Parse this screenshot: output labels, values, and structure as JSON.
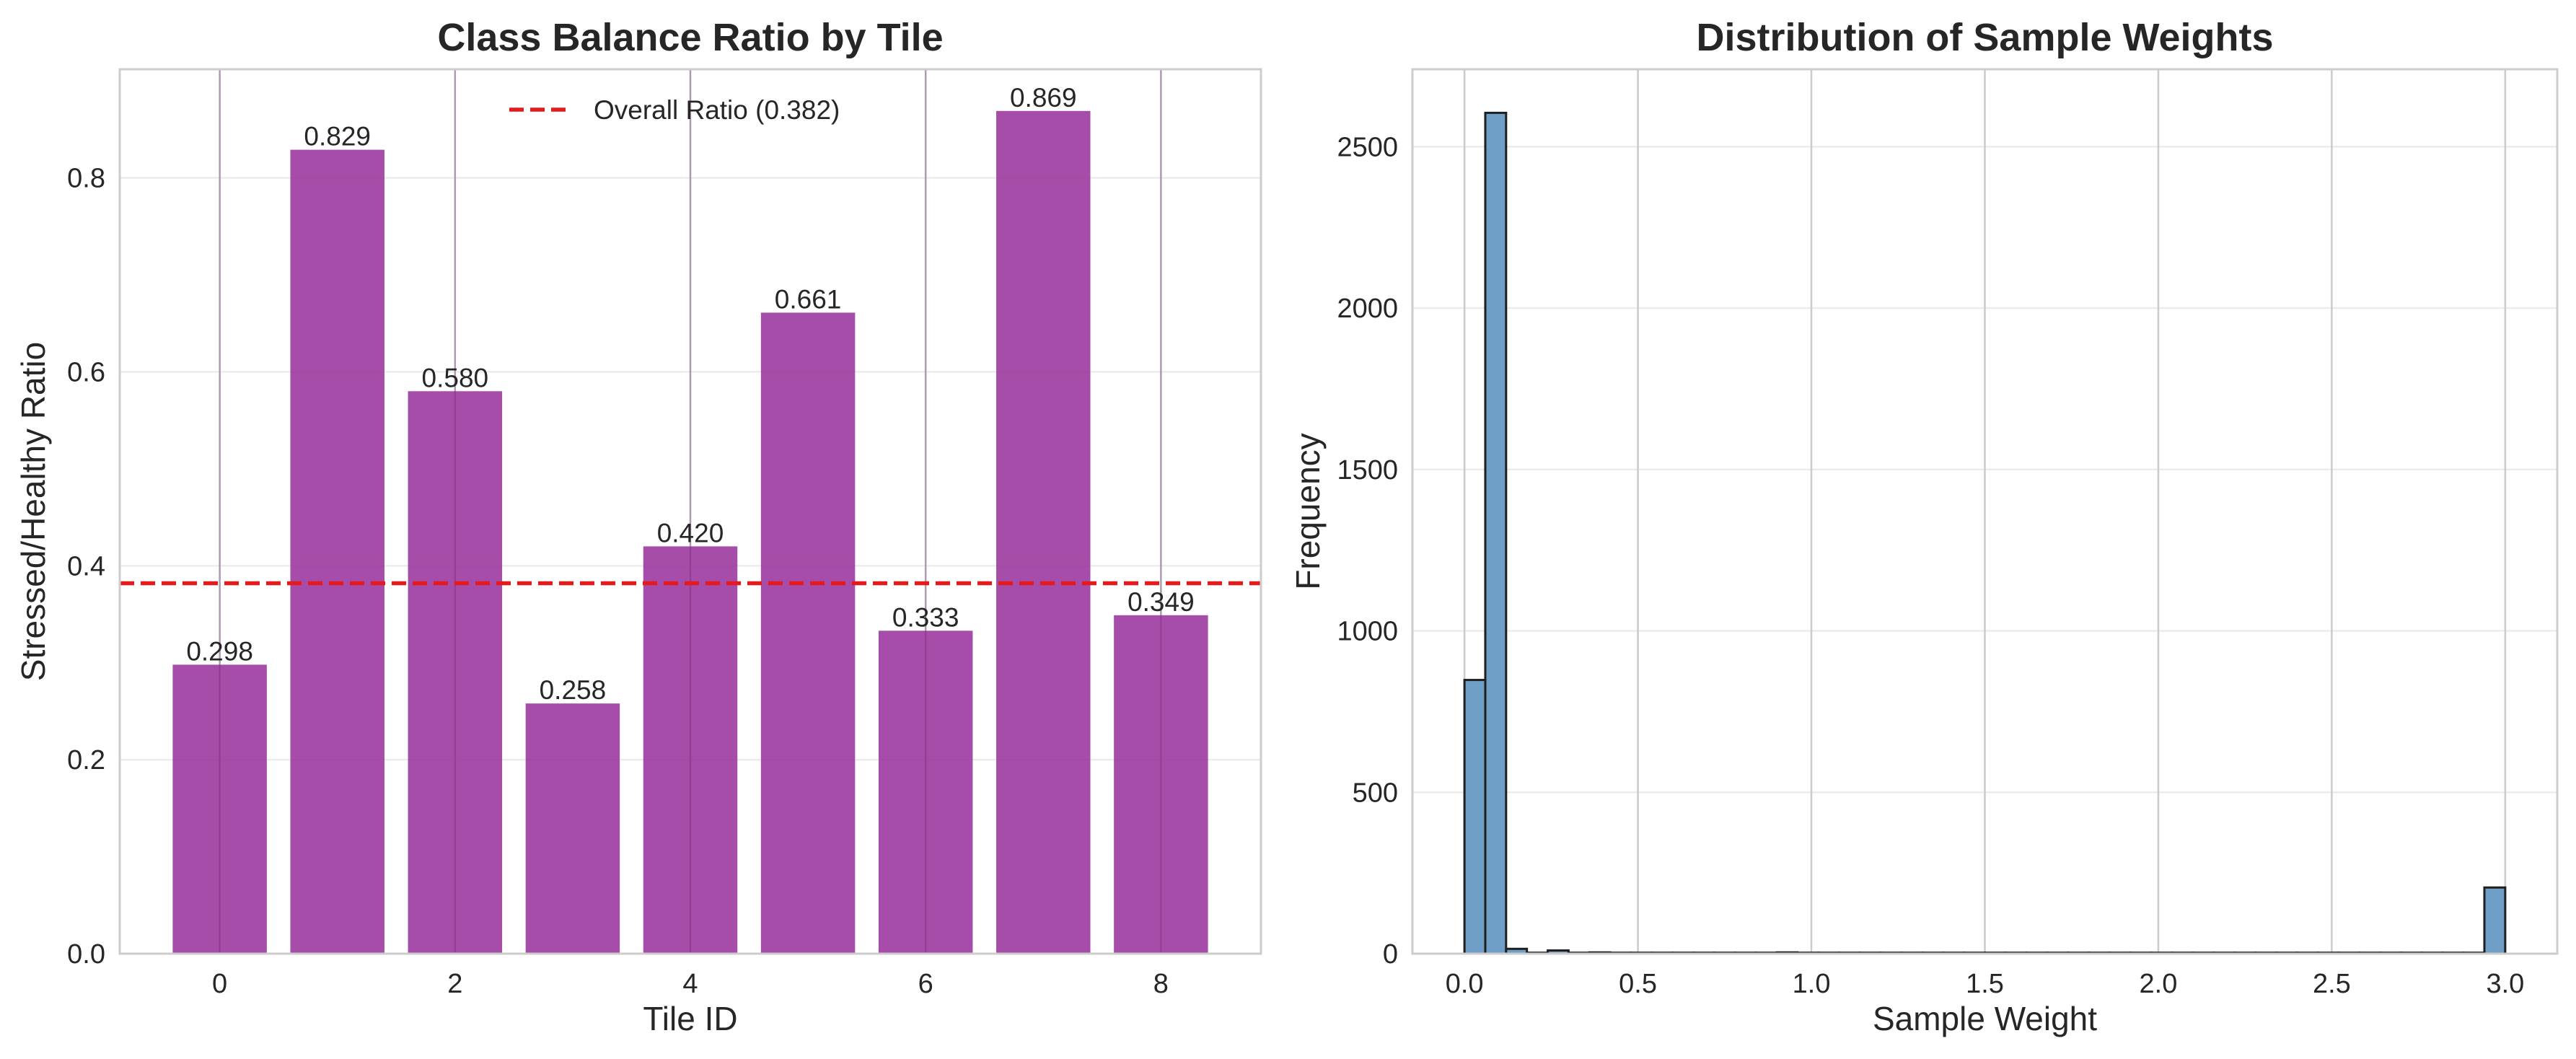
{
  "colors": {
    "bar": "#9b3a9e",
    "hist_fill": "#6f9ec6",
    "hist_edge": "#1f1f1f",
    "overall_line": "#e41a1c"
  },
  "chart_data": [
    {
      "type": "bar",
      "title": "Class Balance Ratio by Tile",
      "xlabel": "Tile ID",
      "ylabel": "Stressed/Healthy Ratio",
      "categories": [
        0,
        1,
        2,
        3,
        4,
        5,
        6,
        7,
        8
      ],
      "values": [
        0.298,
        0.829,
        0.58,
        0.258,
        0.42,
        0.661,
        0.333,
        0.869,
        0.349
      ],
      "value_labels": [
        "0.298",
        "0.829",
        "0.580",
        "0.258",
        "0.420",
        "0.661",
        "0.333",
        "0.869",
        "0.349"
      ],
      "xlim": [
        -0.85,
        8.85
      ],
      "ylim": [
        0,
        0.912
      ],
      "xticks": [
        0,
        2,
        4,
        6,
        8
      ],
      "xtick_labels": [
        "0",
        "2",
        "4",
        "6",
        "8"
      ],
      "yticks": [
        0.0,
        0.2,
        0.4,
        0.6,
        0.8
      ],
      "ytick_labels": [
        "0.0",
        "0.2",
        "0.4",
        "0.6",
        "0.8"
      ],
      "reference_line": {
        "value": 0.382,
        "label": "Overall Ratio (0.382)",
        "style": "dashed"
      },
      "legend": {
        "entries": [
          "Overall Ratio (0.382)"
        ],
        "placement": "top-center"
      },
      "grid": true
    },
    {
      "type": "bar",
      "title": "Distribution of Sample Weights",
      "xlabel": "Sample Weight",
      "ylabel": "Frequency",
      "bins": {
        "start": 0.0,
        "width": 0.06,
        "count": 50
      },
      "counts": [
        848,
        2605,
        15,
        3,
        10,
        3,
        4,
        3,
        3,
        3,
        3,
        3,
        3,
        3,
        3,
        4,
        3,
        3,
        3,
        3,
        3,
        3,
        3,
        3,
        3,
        3,
        3,
        3,
        3,
        3,
        3,
        3,
        3,
        3,
        3,
        3,
        3,
        3,
        3,
        3,
        3,
        3,
        3,
        3,
        3,
        3,
        3,
        3,
        3,
        205
      ],
      "xlim": [
        -0.15,
        3.15
      ],
      "ylim": [
        0,
        2740
      ],
      "xticks": [
        0.0,
        0.5,
        1.0,
        1.5,
        2.0,
        2.5,
        3.0
      ],
      "xtick_labels": [
        "0.0",
        "0.5",
        "1.0",
        "1.5",
        "2.0",
        "2.5",
        "3.0"
      ],
      "yticks": [
        0,
        500,
        1000,
        1500,
        2000,
        2500
      ],
      "ytick_labels": [
        "0",
        "500",
        "1000",
        "1500",
        "2000",
        "2500"
      ],
      "grid": true
    }
  ]
}
